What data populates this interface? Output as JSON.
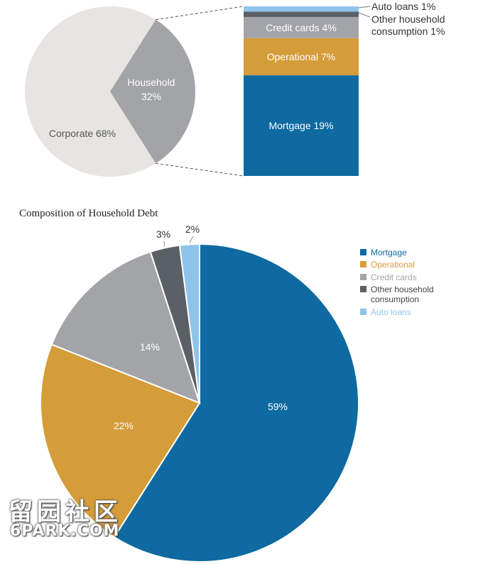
{
  "chart_data": [
    {
      "type": "pie",
      "slices": [
        {
          "label": "Corporate 68%",
          "value": 68,
          "color": "#e6e5e2"
        },
        {
          "label": "Household",
          "label2": "32%",
          "value": 32,
          "color": "#a3a4a8"
        }
      ]
    },
    {
      "type": "bar",
      "stacked": true,
      "segments": [
        {
          "label": "Mortgage 19%",
          "value": 19,
          "color": "#0e6aa0"
        },
        {
          "label": "Operational 7%",
          "value": 7,
          "color": "#d59c3a"
        },
        {
          "label": "Credit cards 4%",
          "value": 4,
          "color": "#a3a4a8"
        },
        {
          "label": "Other household",
          "label2": "consumption 1%",
          "value": 1,
          "color": "#5b5f66"
        },
        {
          "label": "Auto loans 1%",
          "value": 1,
          "color": "#8fc4ea"
        }
      ]
    },
    {
      "type": "pie",
      "title": "Composition of Household Debt",
      "legend_position": "right",
      "slices": [
        {
          "label": "59%",
          "legend": "Mortgage",
          "value": 59,
          "color": "#0e6aa0",
          "legend_color": "#0e6aa0"
        },
        {
          "label": "22%",
          "legend": "Operational",
          "value": 22,
          "color": "#d59c3a",
          "legend_color": "#d59c3a"
        },
        {
          "label": "14%",
          "legend": "Credit cards",
          "value": 14,
          "color": "#a3a4a8",
          "legend_color": "#a3a4a8"
        },
        {
          "label": "3%",
          "legend": "Other household",
          "legend2": "consumption",
          "value": 3,
          "color": "#5b5f66",
          "legend_color": "#5b5f66"
        },
        {
          "label": "2%",
          "legend": "Auto loans",
          "value": 2,
          "color": "#8fc4ea",
          "legend_color": "#8fc4ea"
        }
      ]
    }
  ],
  "watermark": {
    "line1": "留园社区",
    "line2": "6PARK.COM"
  }
}
